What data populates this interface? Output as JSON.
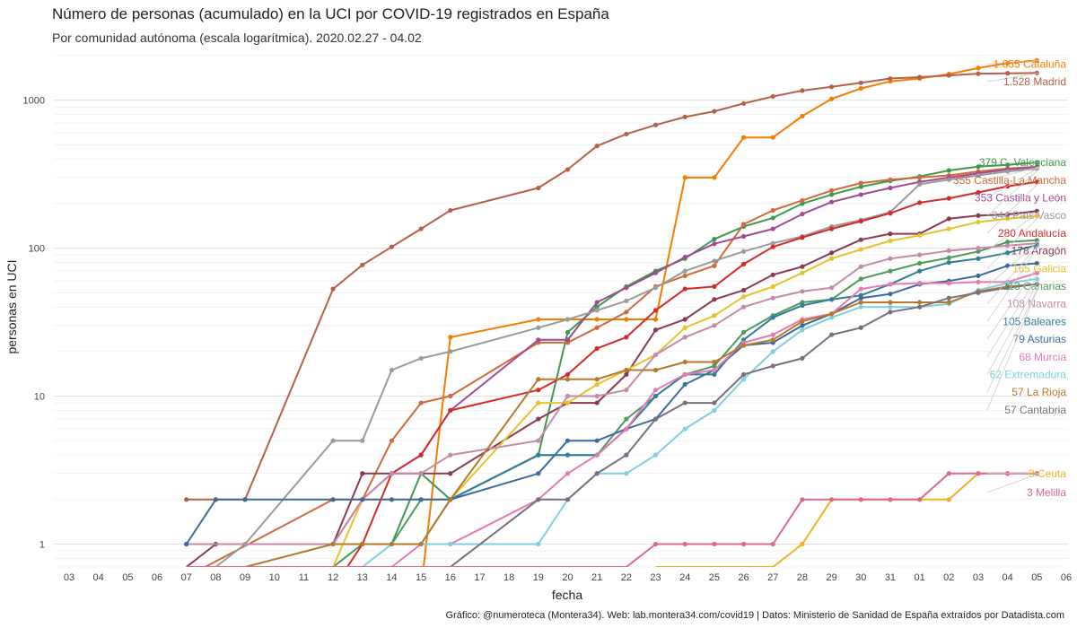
{
  "chart_data": {
    "type": "line",
    "title": "Número de personas (acumulado) en la UCI por COVID-19 registrados en España",
    "subtitle": "Por comunidad autónoma (escala logarítmica). 2020.02.27 - 04.02",
    "xlabel": "fecha",
    "ylabel": "personas en UCI",
    "yscale": "log",
    "ylim": [
      0.7,
      2000
    ],
    "yticks": [
      1,
      10,
      100,
      1000
    ],
    "ytick_labels": [
      "1",
      "10",
      "100",
      "1000"
    ],
    "x_ticks": [
      "03",
      "04",
      "05",
      "06",
      "07",
      "08",
      "09",
      "10",
      "11",
      "12",
      "13",
      "14",
      "15",
      "16",
      "17",
      "18",
      "19",
      "20",
      "21",
      "22",
      "23",
      "24",
      "25",
      "26",
      "27",
      "28",
      "29",
      "30",
      "31",
      "01",
      "02",
      "03",
      "04",
      "05",
      "06"
    ],
    "x_index_range": [
      0,
      34
    ],
    "caption": "Gráfico: @numeroteca (Montera34). Web: lab.montera34.com/covid19 | Datos: Ministerio de Sanidad de España extraídos por Datadista.com",
    "series": [
      {
        "name": "Cataluña",
        "label": "1.855 Cataluña",
        "color": "#f57c00",
        "x": [
          12,
          13,
          16,
          17,
          18,
          19,
          20,
          21,
          22,
          23,
          24,
          25,
          26,
          27,
          28,
          29,
          30,
          31,
          32,
          33
        ],
        "y": [
          0.5,
          25,
          33,
          33,
          33,
          33,
          33,
          300,
          300,
          560,
          560,
          780,
          1020,
          1200,
          1340,
          1400,
          1500,
          1650,
          1780,
          1855
        ]
      },
      {
        "name": "Madrid",
        "label": "1.528 Madrid",
        "color": "#b5604a",
        "x": [
          4,
          5,
          6,
          9,
          10,
          11,
          12,
          13,
          16,
          17,
          18,
          19,
          20,
          21,
          22,
          23,
          24,
          25,
          26,
          27,
          28,
          29,
          30,
          31,
          32,
          33
        ],
        "y": [
          2,
          2,
          2,
          53,
          77,
          102,
          135,
          180,
          255,
          340,
          490,
          590,
          680,
          770,
          840,
          950,
          1060,
          1160,
          1230,
          1310,
          1400,
          1430,
          1470,
          1510,
          1520,
          1528
        ]
      },
      {
        "name": "C. Valenciana",
        "label": "379 C. Valenciana",
        "color": "#3e9a50",
        "x": [
          9,
          10,
          11,
          12,
          13,
          16,
          17,
          18,
          19,
          20,
          21,
          22,
          23,
          24,
          25,
          26,
          27,
          28,
          29,
          30,
          31,
          32,
          33
        ],
        "y": [
          0.7,
          1,
          1,
          3,
          2,
          4,
          27,
          40,
          55,
          70,
          85,
          115,
          140,
          160,
          200,
          230,
          260,
          285,
          305,
          335,
          355,
          365,
          379
        ]
      },
      {
        "name": "Castilla-La Mancha",
        "label": "355 Castilla-La Mancha",
        "color": "#cf6a3a",
        "x": [
          4,
          9,
          10,
          11,
          12,
          13,
          16,
          17,
          18,
          19,
          20,
          21,
          22,
          23,
          24,
          25,
          26,
          27,
          28,
          29,
          30,
          31,
          32,
          33
        ],
        "y": [
          0.6,
          2,
          2,
          5,
          9,
          10,
          23,
          23,
          29,
          37,
          55,
          65,
          76,
          145,
          180,
          210,
          245,
          275,
          290,
          300,
          310,
          330,
          345,
          355
        ]
      },
      {
        "name": "Castilla y León",
        "label": "353 Castilla y León",
        "color": "#a24a93",
        "x": [
          4,
          9,
          10,
          11,
          12,
          13,
          16,
          17,
          18,
          19,
          20,
          21,
          22,
          23,
          24,
          25,
          26,
          27,
          28,
          29,
          30,
          31,
          32,
          33
        ],
        "y": [
          1,
          1,
          2,
          3,
          4,
          8,
          24,
          24,
          43,
          54,
          68,
          87,
          107,
          120,
          135,
          170,
          205,
          230,
          255,
          280,
          300,
          320,
          340,
          353
        ]
      },
      {
        "name": "País Vasco",
        "label": "344 País Vasco",
        "color": "#9b9b9b",
        "x": [
          4,
          5,
          6,
          9,
          10,
          11,
          12,
          13,
          16,
          17,
          18,
          19,
          20,
          21,
          22,
          23,
          24,
          25,
          26,
          27,
          28,
          29,
          30,
          31,
          32,
          33
        ],
        "y": [
          0.5,
          0.7,
          1,
          5,
          5,
          15,
          18,
          20,
          29,
          33,
          38,
          44,
          54,
          70,
          82,
          95,
          108,
          120,
          140,
          155,
          175,
          270,
          290,
          310,
          330,
          344
        ]
      },
      {
        "name": "Andalucía",
        "label": "280 Andalucía",
        "color": "#d42a2a",
        "x": [
          9,
          10,
          11,
          12,
          13,
          16,
          17,
          18,
          19,
          20,
          21,
          22,
          23,
          24,
          25,
          26,
          27,
          28,
          29,
          30,
          31,
          32,
          33
        ],
        "y": [
          0.5,
          1,
          3,
          4,
          8,
          11,
          14,
          21,
          25,
          38,
          53,
          55,
          78,
          102,
          118,
          135,
          152,
          172,
          203,
          217,
          238,
          262,
          280
        ]
      },
      {
        "name": "Aragón",
        "label": "178 Aragón",
        "color": "#8a3a55",
        "x": [
          4,
          5,
          9,
          10,
          11,
          12,
          13,
          16,
          17,
          18,
          19,
          20,
          21,
          22,
          23,
          24,
          25,
          26,
          27,
          28,
          29,
          30,
          31,
          32,
          33
        ],
        "y": [
          0.7,
          1,
          1,
          3,
          3,
          3,
          3,
          7,
          9,
          9,
          14,
          28,
          33,
          45,
          52,
          66,
          75,
          93,
          114,
          125,
          125,
          158,
          166,
          169,
          178
        ]
      },
      {
        "name": "Galicia",
        "label": "165 Galicia",
        "color": "#e3c42b",
        "x": [
          9,
          10,
          11,
          12,
          13,
          16,
          17,
          18,
          19,
          20,
          21,
          22,
          23,
          24,
          25,
          26,
          27,
          28,
          29,
          30,
          31,
          32,
          33
        ],
        "y": [
          0.7,
          2,
          2,
          2,
          2,
          9,
          9,
          12,
          15,
          19,
          29,
          35,
          47,
          55,
          68,
          85,
          98,
          112,
          122,
          135,
          150,
          158,
          165
        ]
      },
      {
        "name": "Canarias",
        "label": "113 Canarias",
        "color": "#4e9a5e",
        "x": [
          10,
          11,
          12,
          13,
          16,
          17,
          18,
          19,
          20,
          21,
          22,
          23,
          24,
          25,
          26,
          27,
          28,
          29,
          30,
          31,
          32,
          33
        ],
        "y": [
          1,
          1,
          2,
          2,
          4,
          4,
          4,
          7,
          10,
          14,
          16,
          27,
          35,
          43,
          45,
          62,
          70,
          79,
          86,
          95,
          110,
          113
        ]
      },
      {
        "name": "Navarra",
        "label": "108 Navarra",
        "color": "#c48aaa",
        "x": [
          4,
          9,
          10,
          11,
          12,
          13,
          16,
          17,
          18,
          19,
          20,
          21,
          22,
          23,
          24,
          25,
          26,
          27,
          28,
          29,
          30,
          31,
          32,
          33
        ],
        "y": [
          1,
          1,
          2,
          3,
          3,
          4,
          5,
          10,
          10,
          11,
          19,
          25,
          30,
          40,
          46,
          51,
          54,
          75,
          85,
          90,
          96,
          100,
          104,
          108
        ]
      },
      {
        "name": "Baleares",
        "label": "105 Baleares",
        "color": "#2f7f97",
        "x": [
          12,
          13,
          16,
          17,
          18,
          19,
          20,
          21,
          22,
          23,
          24,
          25,
          26,
          27,
          28,
          29,
          30,
          31,
          32,
          33
        ],
        "y": [
          1,
          2,
          4,
          4,
          4,
          6,
          10,
          14,
          14,
          24,
          34,
          41,
          45,
          48,
          57,
          70,
          80,
          85,
          93,
          105
        ]
      },
      {
        "name": "Asturias",
        "label": "79 Asturias",
        "color": "#3f6aa0",
        "x": [
          4,
          5,
          6,
          9,
          10,
          11,
          12,
          13,
          16,
          17,
          18,
          19,
          20,
          21,
          22,
          23,
          24,
          25,
          26,
          27,
          28,
          29,
          30,
          31,
          32,
          33
        ],
        "y": [
          1,
          2,
          2,
          2,
          2,
          2,
          2,
          2,
          3,
          5,
          5,
          6,
          7,
          12,
          15,
          22,
          23,
          30,
          36,
          46,
          49,
          57,
          60,
          65,
          76,
          79
        ]
      },
      {
        "name": "Murcia",
        "label": "68 Murcia",
        "color": "#e57ab5",
        "x": [
          11,
          12,
          13,
          16,
          17,
          18,
          19,
          20,
          21,
          22,
          23,
          24,
          25,
          26,
          27,
          28,
          29,
          30,
          31,
          32,
          33
        ],
        "y": [
          0.7,
          1,
          1,
          2,
          3,
          4,
          6,
          11,
          14,
          15,
          23,
          26,
          33,
          36,
          53,
          57,
          58,
          58,
          59,
          59,
          68
        ]
      },
      {
        "name": "Extremadura",
        "label": "62 Extremadura",
        "color": "#7fcfdf",
        "x": [
          10,
          11,
          12,
          13,
          16,
          17,
          18,
          19,
          20,
          21,
          22,
          23,
          24,
          25,
          26,
          27,
          28,
          29,
          30,
          31,
          32,
          33
        ],
        "y": [
          0.7,
          1,
          1,
          1,
          1,
          2,
          3,
          3,
          4,
          6,
          8,
          13,
          20,
          28,
          34,
          40,
          40,
          40,
          42,
          52,
          58,
          62
        ]
      },
      {
        "name": "La Rioja",
        "label": "57 La Rioja",
        "color": "#b57a2a",
        "x": [
          6,
          9,
          10,
          11,
          12,
          13,
          16,
          17,
          18,
          19,
          20,
          21,
          22,
          23,
          24,
          25,
          26,
          27,
          28,
          29,
          30,
          31,
          32,
          33
        ],
        "y": [
          0.7,
          1,
          1,
          1,
          1,
          2,
          13,
          13,
          13,
          15,
          15,
          17,
          17,
          22,
          24,
          32,
          36,
          43,
          43,
          43,
          43,
          51,
          55,
          57
        ]
      },
      {
        "name": "Cantabria",
        "label": "57 Cantabria",
        "color": "#77707f",
        "x": [
          13,
          16,
          17,
          18,
          19,
          20,
          21,
          22,
          23,
          24,
          25,
          26,
          27,
          28,
          29,
          30,
          31,
          32,
          33
        ],
        "y": [
          0.7,
          2,
          2,
          3,
          4,
          7,
          9,
          9,
          14,
          16,
          18,
          26,
          29,
          37,
          40,
          46,
          50,
          54,
          57
        ]
      },
      {
        "name": "Ceuta",
        "label": "3 Ceuta",
        "color": "#f2b21f",
        "x": [
          20,
          24,
          25,
          26,
          27,
          28,
          29,
          30,
          31,
          32,
          33
        ],
        "y": [
          0.7,
          0.7,
          1,
          2,
          2,
          2,
          2,
          2,
          3,
          3,
          3
        ]
      },
      {
        "name": "Melilla",
        "label": "3 Melilla",
        "color": "#d96a8a",
        "x": [
          4,
          19,
          20,
          21,
          22,
          23,
          24,
          25,
          26,
          27,
          28,
          29,
          30,
          31,
          32,
          33
        ],
        "y": [
          0.7,
          0.7,
          1,
          1,
          1,
          1,
          1,
          2,
          2,
          2,
          2,
          2,
          3,
          3,
          3,
          3
        ]
      }
    ]
  }
}
